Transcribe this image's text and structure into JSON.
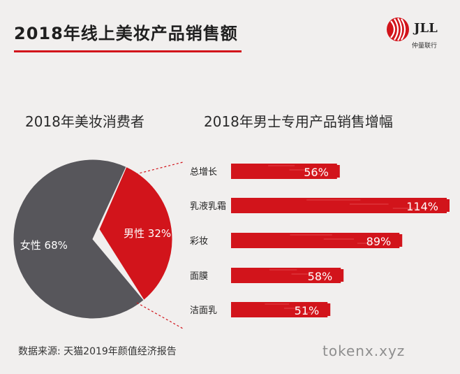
{
  "header": {
    "title": "2018年线上美妆产品销售额",
    "logo_text": "JLL",
    "logo_subtitle": "仲量联行"
  },
  "colors": {
    "red": "#d2141b",
    "gray": "#57565b",
    "background": "#f1efee"
  },
  "chart_data": [
    {
      "type": "pie",
      "title": "2018年美妆消费者",
      "slices": [
        {
          "label": "女性",
          "value": 68,
          "value_label": "68%",
          "color": "#57565b"
        },
        {
          "label": "男性",
          "value": 32,
          "value_label": "32%",
          "color": "#d2141b"
        }
      ]
    },
    {
      "type": "bar",
      "orientation": "horizontal",
      "title": "2018年男士专用产品销售增幅",
      "categories": [
        "总增长",
        "乳液乳霜",
        "彩妆",
        "面膜",
        "洁面乳"
      ],
      "values": [
        56,
        114,
        89,
        58,
        51
      ],
      "value_labels": [
        "56%",
        "114%",
        "89%",
        "58%",
        "51%"
      ],
      "color": "#d2141b",
      "xlim": [
        0,
        114
      ]
    }
  ],
  "footer": {
    "source": "数据来源: 天猫2019年颜值经济报告",
    "watermark": "tokenx.xyz"
  }
}
